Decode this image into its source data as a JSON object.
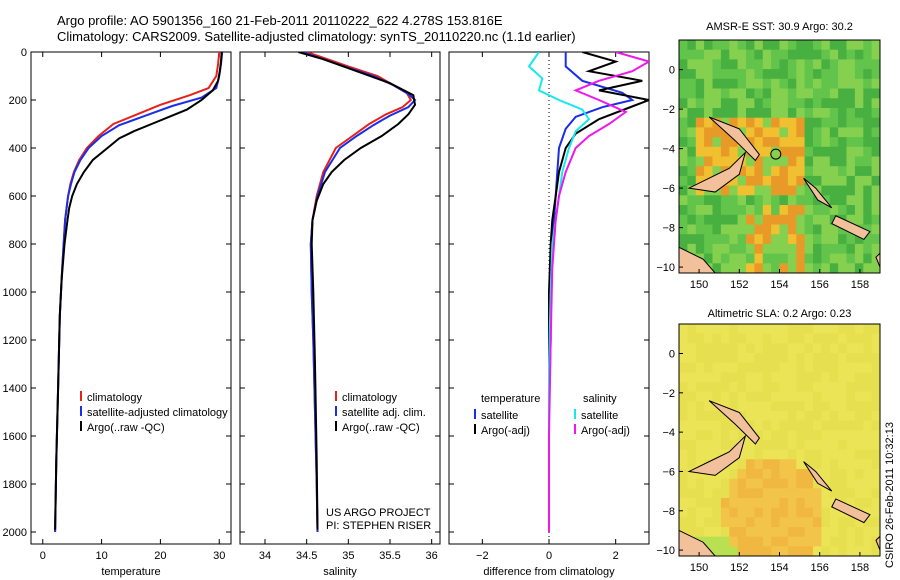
{
  "header": {
    "line1": "Argo profile: AO 5901356_160 21-Feb-2011 20110222_622 4.278S 153.816E",
    "line2": "Climatology: CARS2009. Satellite-adjusted climatology: synTS_20110220.nc (1.1d earlier)"
  },
  "side_label": "CSIRO 26-Feb-2011 10:32:13",
  "project_note": {
    "line1": "US ARGO PROJECT",
    "line2": "PI: STEPHEN RISER"
  },
  "colors": {
    "climatology": "#e8201a",
    "satellite": "#1a2ee8",
    "argo": "#000000",
    "sat_salinity": "#17e8ee",
    "argo_adj_salinity": "#ee17ee"
  },
  "chart_data": [
    {
      "id": "temperature",
      "type": "line",
      "xlabel": "temperature",
      "ylabel": "",
      "xlim": [
        -2,
        32
      ],
      "ylim": [
        2050,
        0
      ],
      "xticks": [
        0,
        10,
        20,
        30
      ],
      "yticks": [
        0,
        200,
        400,
        600,
        800,
        1000,
        1200,
        1400,
        1600,
        1800,
        2000
      ],
      "legend": [
        "climatology",
        "satellite-adjusted climatology",
        "Argo(..raw -QC)"
      ],
      "series": [
        {
          "name": "climatology",
          "color": "#e8201a",
          "x": [
            30.0,
            29.8,
            29.5,
            28.2,
            25.0,
            20.0,
            16.0,
            12.0,
            9.5,
            7.5,
            6.2,
            5.3,
            4.7,
            4.3,
            3.8,
            3.3,
            2.9,
            2.6,
            2.3,
            2.1
          ],
          "y": [
            0,
            50,
            100,
            150,
            180,
            220,
            260,
            300,
            350,
            400,
            450,
            500,
            550,
            600,
            700,
            900,
            1100,
            1400,
            1700,
            2000
          ]
        },
        {
          "name": "satellite-adjusted climatology",
          "color": "#1a2ee8",
          "x": [
            30.5,
            30.3,
            30.0,
            29.5,
            27.0,
            22.0,
            17.5,
            13.0,
            10.0,
            7.8,
            6.4,
            5.4,
            4.8,
            4.3,
            3.8,
            3.3,
            2.9,
            2.6,
            2.3,
            2.1
          ],
          "y": [
            0,
            50,
            100,
            150,
            190,
            225,
            265,
            305,
            350,
            400,
            450,
            500,
            550,
            600,
            700,
            900,
            1100,
            1400,
            1700,
            2000
          ]
        },
        {
          "name": "Argo(..raw -QC)",
          "color": "#000000",
          "x": [
            30.4,
            30.3,
            30.1,
            29.8,
            28.9,
            27.0,
            24.5,
            21.5,
            18.5,
            15.5,
            13.0,
            11.0,
            8.5,
            7.0,
            5.8,
            5.0,
            4.5,
            4.2,
            3.7,
            3.2,
            2.9,
            2.6,
            2.3,
            2.1
          ],
          "y": [
            0,
            40,
            80,
            120,
            160,
            200,
            240,
            270,
            300,
            330,
            360,
            400,
            450,
            500,
            550,
            600,
            650,
            700,
            800,
            950,
            1100,
            1400,
            1700,
            1990
          ]
        }
      ]
    },
    {
      "id": "salinity",
      "type": "line",
      "xlabel": "salinity",
      "ylabel": "",
      "xlim": [
        33.7,
        36.1
      ],
      "ylim": [
        2050,
        0
      ],
      "xticks": [
        34,
        34.5,
        35,
        35.5,
        36
      ],
      "yticks": [
        0,
        200,
        400,
        600,
        800,
        1000,
        1200,
        1400,
        1600,
        1800,
        2000
      ],
      "legend": [
        "climatology",
        "satellite adj. clim.",
        "Argo(..raw -QC)"
      ],
      "series": [
        {
          "name": "climatology",
          "color": "#e8201a",
          "x": [
            34.5,
            34.75,
            35.0,
            35.35,
            35.55,
            35.7,
            35.75,
            35.65,
            35.45,
            35.25,
            35.05,
            34.85,
            34.7,
            34.62,
            34.57,
            34.55,
            34.56,
            34.58,
            34.6,
            34.62,
            34.63
          ],
          "y": [
            0,
            30,
            60,
            100,
            140,
            170,
            200,
            230,
            260,
            300,
            350,
            400,
            500,
            600,
            700,
            800,
            1000,
            1200,
            1500,
            1800,
            2000
          ]
        },
        {
          "name": "satellite adj. clim.",
          "color": "#1a2ee8",
          "x": [
            34.45,
            34.7,
            34.95,
            35.3,
            35.55,
            35.72,
            35.8,
            35.72,
            35.5,
            35.3,
            35.1,
            34.9,
            34.72,
            34.63,
            34.57,
            34.55,
            34.56,
            34.58,
            34.6,
            34.62,
            34.63
          ],
          "y": [
            0,
            30,
            60,
            100,
            140,
            175,
            200,
            230,
            265,
            305,
            350,
            400,
            500,
            600,
            700,
            800,
            1000,
            1200,
            1500,
            1800,
            2000
          ]
        },
        {
          "name": "Argo(..raw -QC)",
          "color": "#000000",
          "x": [
            34.4,
            34.7,
            35.1,
            35.5,
            35.78,
            35.8,
            35.72,
            35.6,
            35.4,
            35.15,
            34.95,
            34.8,
            34.7,
            34.62,
            34.57,
            34.56,
            34.58,
            34.6,
            34.62,
            34.63
          ],
          "y": [
            0,
            30,
            80,
            130,
            180,
            220,
            260,
            300,
            350,
            400,
            450,
            500,
            550,
            620,
            700,
            800,
            1000,
            1300,
            1700,
            1990
          ]
        }
      ]
    },
    {
      "id": "difference",
      "type": "line",
      "xlabel": "difference from climatology",
      "ylabel": "",
      "xlim": [
        -3,
        3
      ],
      "ylim": [
        2050,
        0
      ],
      "xticks": [
        -2,
        0,
        2
      ],
      "yticks": [
        0,
        200,
        400,
        600,
        800,
        1000,
        1200,
        1400,
        1600,
        1800,
        2000
      ],
      "legend_left_title": "temperature",
      "legend_right_title": "salinity",
      "legend": [
        "satellite",
        "Argo(-adj)",
        "satellite",
        "Argo(-adj)"
      ],
      "series": [
        {
          "name": "temperature satellite",
          "color": "#1a2ee8",
          "x": [
            0.5,
            0.5,
            1.0,
            2.2,
            2.5,
            1.6,
            0.8,
            0.5,
            0.3,
            0.25,
            0.2,
            0.15,
            0.1,
            0.05,
            0.05,
            0.0,
            0.0,
            0.0
          ],
          "y": [
            0,
            60,
            120,
            170,
            200,
            230,
            270,
            320,
            400,
            500,
            600,
            700,
            800,
            1000,
            1200,
            1500,
            1800,
            2000
          ]
        },
        {
          "name": "temperature Argo(-adj)",
          "color": "#000000",
          "x": [
            1.0,
            2.0,
            1.2,
            2.8,
            1.5,
            3.0,
            1.5,
            0.8,
            0.5,
            0.3,
            0.2,
            0.1,
            0.05,
            0.0,
            0.0,
            0.0,
            0.0
          ],
          "y": [
            0,
            40,
            80,
            120,
            160,
            200,
            280,
            340,
            400,
            500,
            600,
            700,
            800,
            1000,
            1300,
            1700,
            2000
          ]
        },
        {
          "name": "salinity satellite",
          "color": "#17e8ee",
          "x": [
            -0.3,
            -0.6,
            -0.2,
            -0.3,
            0.3,
            1.0,
            1.2,
            0.8,
            0.6,
            0.4,
            0.3,
            0.2,
            0.1,
            0.05,
            0.0,
            0.0,
            0.0
          ],
          "y": [
            0,
            60,
            110,
            160,
            200,
            240,
            280,
            330,
            400,
            500,
            600,
            700,
            800,
            1000,
            1300,
            1700,
            2000
          ]
        },
        {
          "name": "salinity Argo(-adj)",
          "color": "#ee17ee",
          "x": [
            2.0,
            3.0,
            2.5,
            1.5,
            0.8,
            1.5,
            2.3,
            1.8,
            1.2,
            0.8,
            0.5,
            0.3,
            0.2,
            0.1,
            0.05,
            0.0,
            0.0
          ],
          "y": [
            0,
            40,
            80,
            120,
            160,
            200,
            250,
            300,
            350,
            400,
            500,
            600,
            700,
            900,
            1200,
            1600,
            2000
          ]
        }
      ]
    },
    {
      "id": "sst_map",
      "type": "heatmap",
      "title": "AMSR-E SST: 30.9 Argo: 30.2",
      "xlim": [
        149,
        159
      ],
      "ylim": [
        -10.3,
        1.5
      ],
      "xticks": [
        150,
        152,
        154,
        156,
        158
      ],
      "yticks": [
        0,
        -2,
        -4,
        -6,
        -8,
        -10
      ],
      "float_position": {
        "lon": 153.816,
        "lat": -4.278
      }
    },
    {
      "id": "sla_map",
      "type": "heatmap",
      "title": "Altimetric SLA: 0.2 Argo: 0.23",
      "xlim": [
        149,
        159
      ],
      "ylim": [
        -10.3,
        1.5
      ],
      "xticks": [
        150,
        152,
        154,
        156,
        158
      ],
      "yticks": [
        0,
        -2,
        -4,
        -6,
        -8,
        -10
      ]
    }
  ]
}
